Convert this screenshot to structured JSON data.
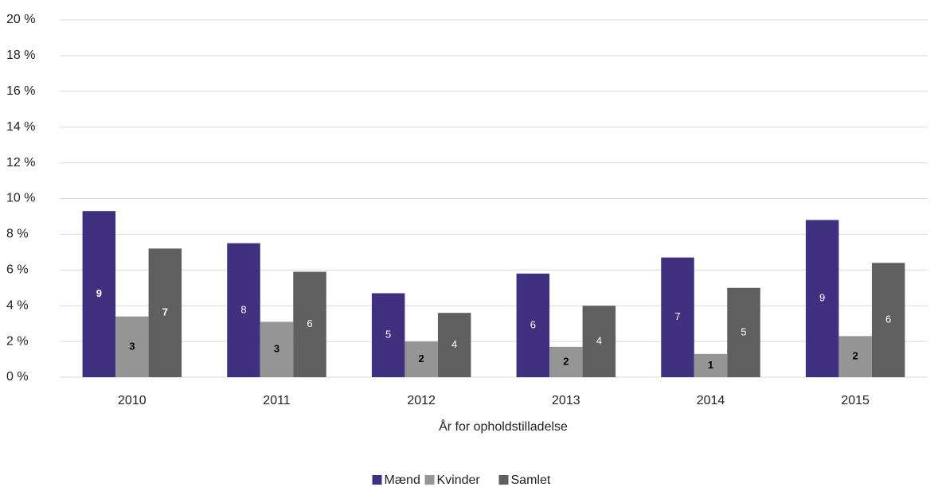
{
  "chart_data": {
    "type": "bar",
    "x_label": "År for opholdstilladelse",
    "categories": [
      "2010",
      "2011",
      "2012",
      "2013",
      "2014",
      "2015"
    ],
    "series": [
      {
        "name": "Mænd",
        "color": "#3f3180",
        "label_color": "#ffffff",
        "values": [
          9.3,
          7.5,
          4.7,
          5.8,
          6.7,
          8.8
        ],
        "value_labels": [
          "9",
          "8",
          "5",
          "6",
          "7",
          "9"
        ]
      },
      {
        "name": "Kvinder",
        "color": "#959595",
        "label_color": "#000000",
        "values": [
          3.4,
          3.1,
          2.0,
          1.7,
          1.3,
          2.3
        ],
        "value_labels": [
          "3",
          "3",
          "2",
          "2",
          "1",
          "2"
        ]
      },
      {
        "name": "Samlet",
        "color": "#5f5f5f",
        "label_color": "#ffffff",
        "values": [
          7.2,
          5.9,
          3.6,
          4.0,
          5.0,
          6.4
        ],
        "value_labels": [
          "7",
          "6",
          "4",
          "4",
          "5",
          "6"
        ]
      }
    ],
    "ylim": [
      0,
      20
    ],
    "yticks": [
      {
        "value": 0,
        "label": "0 %"
      },
      {
        "value": 2,
        "label": "2 %"
      },
      {
        "value": 4,
        "label": "4 %"
      },
      {
        "value": 6,
        "label": "6 %"
      },
      {
        "value": 8,
        "label": "8 %"
      },
      {
        "value": 10,
        "label": "10 %"
      },
      {
        "value": 12,
        "label": "12 %"
      },
      {
        "value": 14,
        "label": "14 %"
      },
      {
        "value": 16,
        "label": "16 %"
      },
      {
        "value": 18,
        "label": "18 %"
      },
      {
        "value": 20,
        "label": "20 %"
      }
    ],
    "grid": true,
    "legend": "bottom"
  }
}
